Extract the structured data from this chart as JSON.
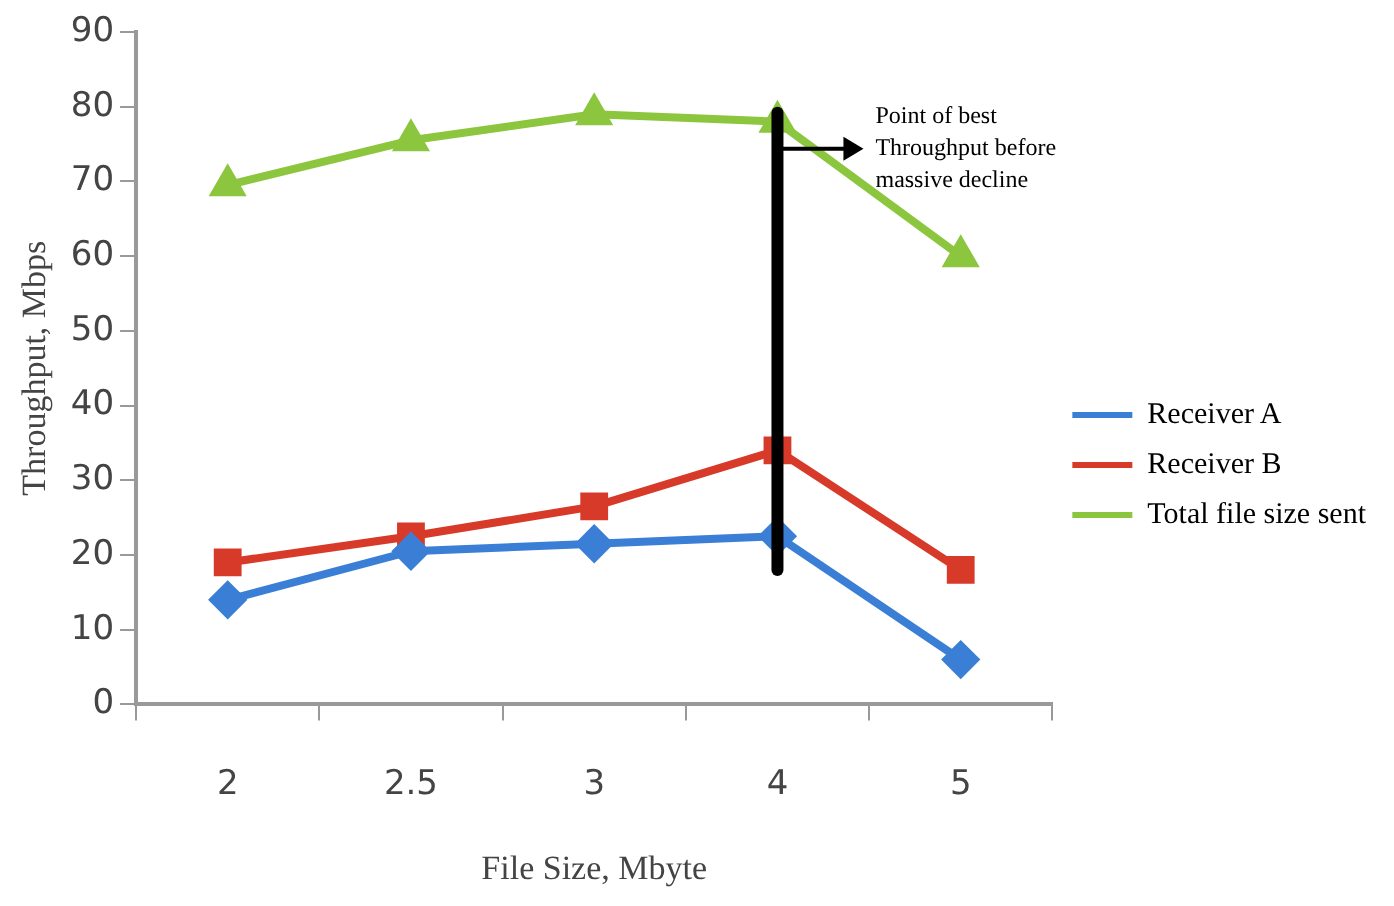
{
  "chart_data": {
    "type": "line",
    "xlabel": "File Size, Mbyte",
    "ylabel": "Throughput, Mbps",
    "categories": [
      "2",
      "2.5",
      "3",
      "4",
      "5"
    ],
    "ylim": [
      0,
      90
    ],
    "yticks": [
      0,
      10,
      20,
      30,
      40,
      50,
      60,
      70,
      80,
      90
    ],
    "grid": false,
    "legend": "right",
    "series": [
      {
        "name": "Receiver A",
        "color": "#3a7fd5",
        "marker": "diamond",
        "values": [
          14,
          20.5,
          21.5,
          22.5,
          6
        ]
      },
      {
        "name": "Receiver B",
        "color": "#d83a2a",
        "marker": "square",
        "values": [
          19,
          22.5,
          26.5,
          34,
          18
        ]
      },
      {
        "name": "Total file size sent",
        "color": "#8cc63f",
        "marker": "triangle",
        "values": [
          69.5,
          75.5,
          79,
          78,
          60
        ]
      }
    ],
    "ref_lines": [
      {
        "axis": "x",
        "value": "4",
        "label": "Point of best Throughput before massive decline",
        "color": "#000000"
      }
    ]
  }
}
